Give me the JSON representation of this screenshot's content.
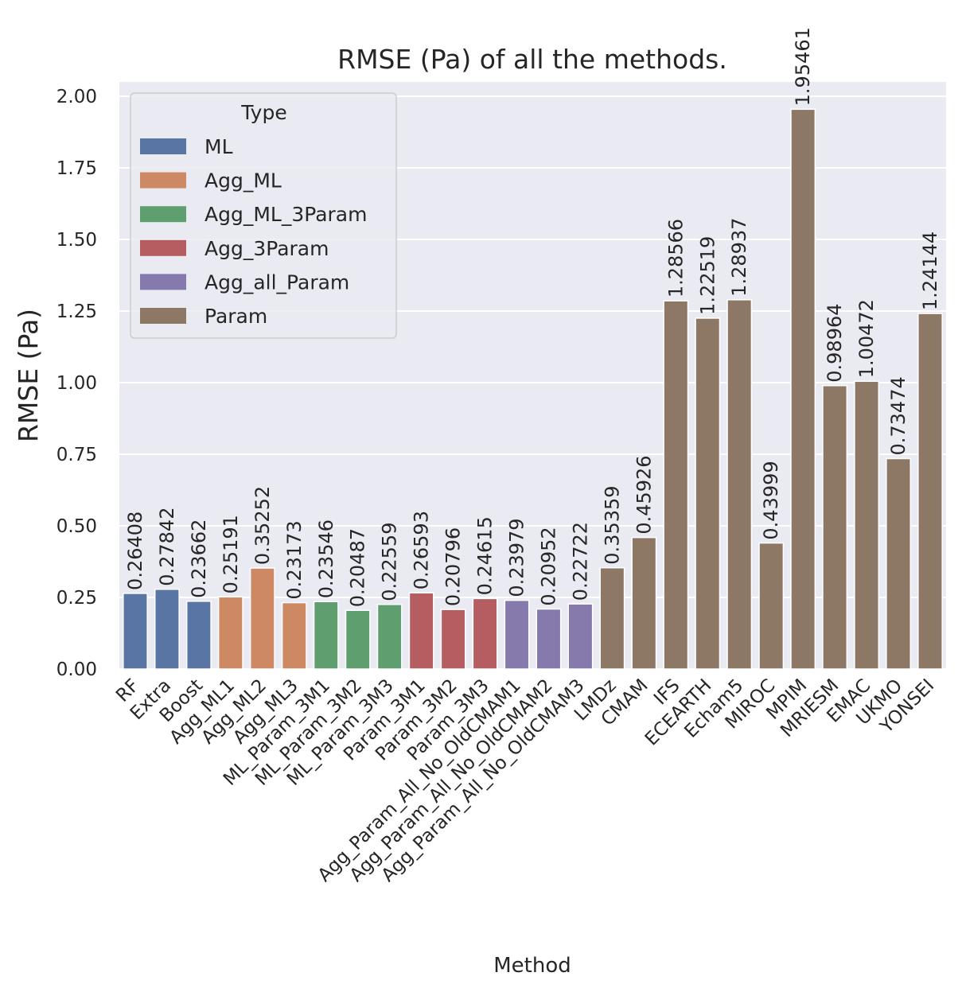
{
  "chart_data": {
    "type": "bar",
    "title": "RMSE (Pa) of all the methods.",
    "xlabel": "Method",
    "ylabel": "RMSE (Pa)",
    "ylim": [
      0,
      2.05
    ],
    "yticks": [
      "0.00",
      "0.25",
      "0.50",
      "0.75",
      "1.00",
      "1.25",
      "1.50",
      "1.75",
      "2.00"
    ],
    "ytick_values": [
      0,
      0.25,
      0.5,
      0.75,
      1.0,
      1.25,
      1.5,
      1.75,
      2.0
    ],
    "grid": true,
    "legend": {
      "title": "Type",
      "placement": "top-left",
      "entries": [
        {
          "name": "ML",
          "color": "#5875a4"
        },
        {
          "name": "Agg_ML",
          "color": "#cc8963"
        },
        {
          "name": "Agg_ML_3Param",
          "color": "#5f9e6e"
        },
        {
          "name": "Agg_3Param",
          "color": "#b55d60"
        },
        {
          "name": "Agg_all_Param",
          "color": "#857aab"
        },
        {
          "name": "Param",
          "color": "#8d7866"
        }
      ]
    },
    "bars": [
      {
        "category": "RF",
        "value": 0.26408,
        "label": "0.26408",
        "type": "ML"
      },
      {
        "category": "Extra",
        "value": 0.27842,
        "label": "0.27842",
        "type": "ML"
      },
      {
        "category": "Boost",
        "value": 0.23662,
        "label": "0.23662",
        "type": "ML"
      },
      {
        "category": "Agg_ML1",
        "value": 0.25191,
        "label": "0.25191",
        "type": "Agg_ML"
      },
      {
        "category": "Agg_ML2",
        "value": 0.35252,
        "label": "0.35252",
        "type": "Agg_ML"
      },
      {
        "category": "Agg_ML3",
        "value": 0.23173,
        "label": "0.23173",
        "type": "Agg_ML"
      },
      {
        "category": "ML_Param_3M1",
        "value": 0.23546,
        "label": "0.23546",
        "type": "Agg_ML_3Param"
      },
      {
        "category": "ML_Param_3M2",
        "value": 0.20487,
        "label": "0.20487",
        "type": "Agg_ML_3Param"
      },
      {
        "category": "ML_Param_3M3",
        "value": 0.22559,
        "label": "0.22559",
        "type": "Agg_ML_3Param"
      },
      {
        "category": "Param_3M1",
        "value": 0.26593,
        "label": "0.26593",
        "type": "Agg_3Param"
      },
      {
        "category": "Param_3M2",
        "value": 0.20796,
        "label": "0.20796",
        "type": "Agg_3Param"
      },
      {
        "category": "Param_3M3",
        "value": 0.24615,
        "label": "0.24615",
        "type": "Agg_3Param"
      },
      {
        "category": "Agg_Param_All_No_OldCMAM1",
        "value": 0.23979,
        "label": "0.23979",
        "type": "Agg_all_Param"
      },
      {
        "category": "Agg_Param_All_No_OldCMAM2",
        "value": 0.20952,
        "label": "0.20952",
        "type": "Agg_all_Param"
      },
      {
        "category": "Agg_Param_All_No_OldCMAM3",
        "value": 0.22722,
        "label": "0.22722",
        "type": "Agg_all_Param"
      },
      {
        "category": "LMDz",
        "value": 0.35359,
        "label": "0.35359",
        "type": "Param"
      },
      {
        "category": "CMAM",
        "value": 0.45926,
        "label": "0.45926",
        "type": "Param"
      },
      {
        "category": "IFS",
        "value": 1.28566,
        "label": "1.28566",
        "type": "Param"
      },
      {
        "category": "ECEARTH",
        "value": 1.22519,
        "label": "1.22519",
        "type": "Param"
      },
      {
        "category": "Echam5",
        "value": 1.28937,
        "label": "1.28937",
        "type": "Param"
      },
      {
        "category": "MIROC",
        "value": 0.43999,
        "label": "0.43999",
        "type": "Param"
      },
      {
        "category": "MPIM",
        "value": 1.95461,
        "label": "1.95461",
        "type": "Param"
      },
      {
        "category": "MRIESM",
        "value": 0.98964,
        "label": "0.98964",
        "type": "Param"
      },
      {
        "category": "EMAC",
        "value": 1.00472,
        "label": "1.00472",
        "type": "Param"
      },
      {
        "category": "UKMO",
        "value": 0.73474,
        "label": "0.73474",
        "type": "Param"
      },
      {
        "category": "YONSEI",
        "value": 1.24144,
        "label": "1.24144",
        "type": "Param"
      }
    ],
    "colors": {
      "plot_background": "#eaeaf2",
      "grid": "#ffffff",
      "text": "#262626"
    }
  }
}
